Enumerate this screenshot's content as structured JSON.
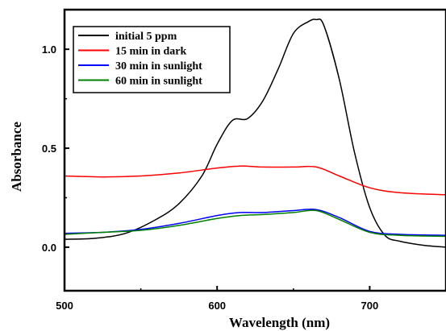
{
  "chart_data": {
    "type": "line",
    "xlabel": "Wavelength (nm)",
    "ylabel": "Absorbance",
    "xlim": [
      500,
      750
    ],
    "ylim": [
      -0.22,
      1.2
    ],
    "xticks": [
      500,
      600,
      700
    ],
    "xtick_labels": [
      "500",
      "600",
      "700"
    ],
    "yticks": [
      0.0,
      0.5,
      1.0
    ],
    "ytick_labels": [
      "0.0",
      "0.5",
      "1.0"
    ],
    "grid": false,
    "legend_position": "top-left",
    "series": [
      {
        "name": "initial 5 ppm",
        "color": "#000000",
        "x": [
          500,
          520,
          540,
          560,
          575,
          590,
          600,
          610,
          620,
          630,
          640,
          650,
          660,
          665,
          670,
          680,
          690,
          700,
          710,
          720,
          735,
          750
        ],
        "y": [
          0.04,
          0.045,
          0.07,
          0.14,
          0.22,
          0.36,
          0.52,
          0.64,
          0.65,
          0.74,
          0.9,
          1.08,
          1.14,
          1.15,
          1.12,
          0.85,
          0.48,
          0.2,
          0.06,
          0.03,
          0.01,
          0.0
        ]
      },
      {
        "name": "15 min in dark",
        "color": "#ff0000",
        "x": [
          500,
          525,
          550,
          575,
          600,
          615,
          630,
          650,
          665,
          680,
          700,
          720,
          750
        ],
        "y": [
          0.36,
          0.355,
          0.36,
          0.375,
          0.4,
          0.41,
          0.405,
          0.405,
          0.405,
          0.36,
          0.3,
          0.275,
          0.265
        ]
      },
      {
        "name": "30 min in sunlight",
        "color": "#0000ff",
        "x": [
          500,
          525,
          550,
          575,
          600,
          615,
          630,
          650,
          665,
          680,
          700,
          720,
          750
        ],
        "y": [
          0.07,
          0.075,
          0.09,
          0.12,
          0.16,
          0.175,
          0.175,
          0.185,
          0.19,
          0.15,
          0.08,
          0.065,
          0.06
        ]
      },
      {
        "name": "60 min in sunlight",
        "color": "#008000",
        "x": [
          500,
          525,
          550,
          575,
          600,
          615,
          630,
          650,
          665,
          680,
          700,
          720,
          750
        ],
        "y": [
          0.065,
          0.075,
          0.085,
          0.11,
          0.145,
          0.16,
          0.165,
          0.175,
          0.185,
          0.14,
          0.075,
          0.06,
          0.055
        ]
      }
    ]
  }
}
